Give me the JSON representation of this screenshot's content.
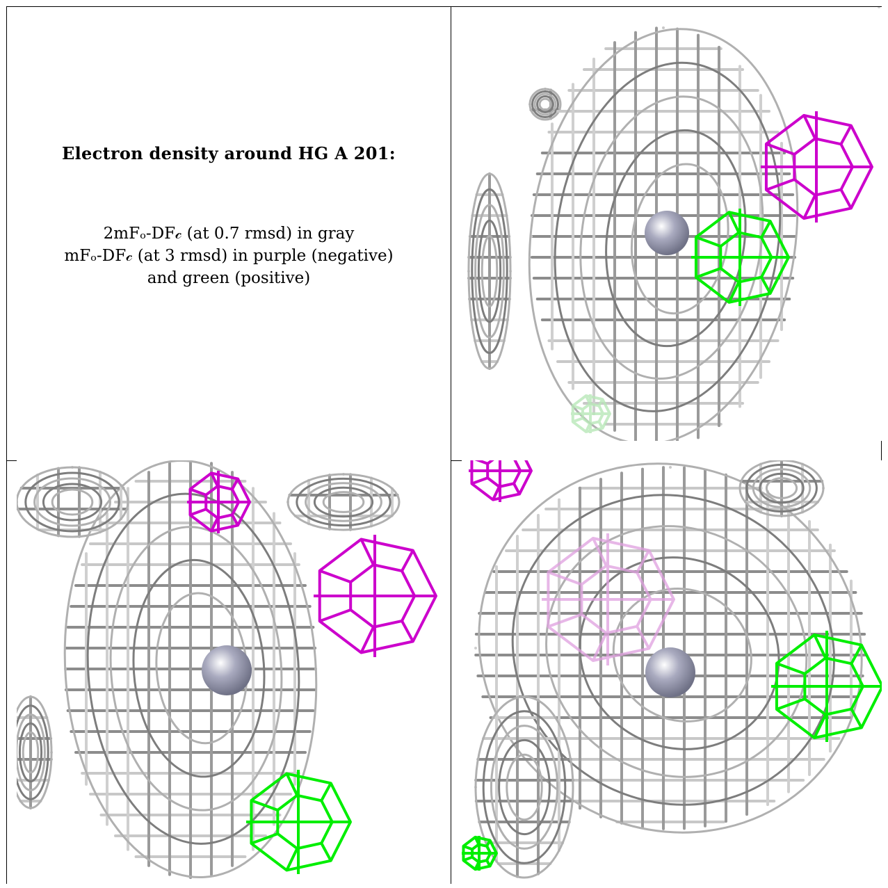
{
  "title": "Electron density around HG A 201:",
  "legend_lines": [
    "2mFₒ-DF𝒸 (at 0.7 rmsd) in gray",
    "mFₒ-DF𝒸 (at 3 rmsd) in purple (negative)",
    "and green (positive)"
  ],
  "colors": {
    "density_2fofc": "#9a9a9a",
    "difference_negative": "#cc00cc",
    "difference_positive": "#00ee00",
    "atom": "#a9aabf"
  },
  "panels": [
    {
      "id": "top-right",
      "atom": "HG A 201"
    },
    {
      "id": "bottom-left",
      "atom": "HG A 201"
    },
    {
      "id": "bottom-right",
      "atom": "HG A 201"
    }
  ]
}
